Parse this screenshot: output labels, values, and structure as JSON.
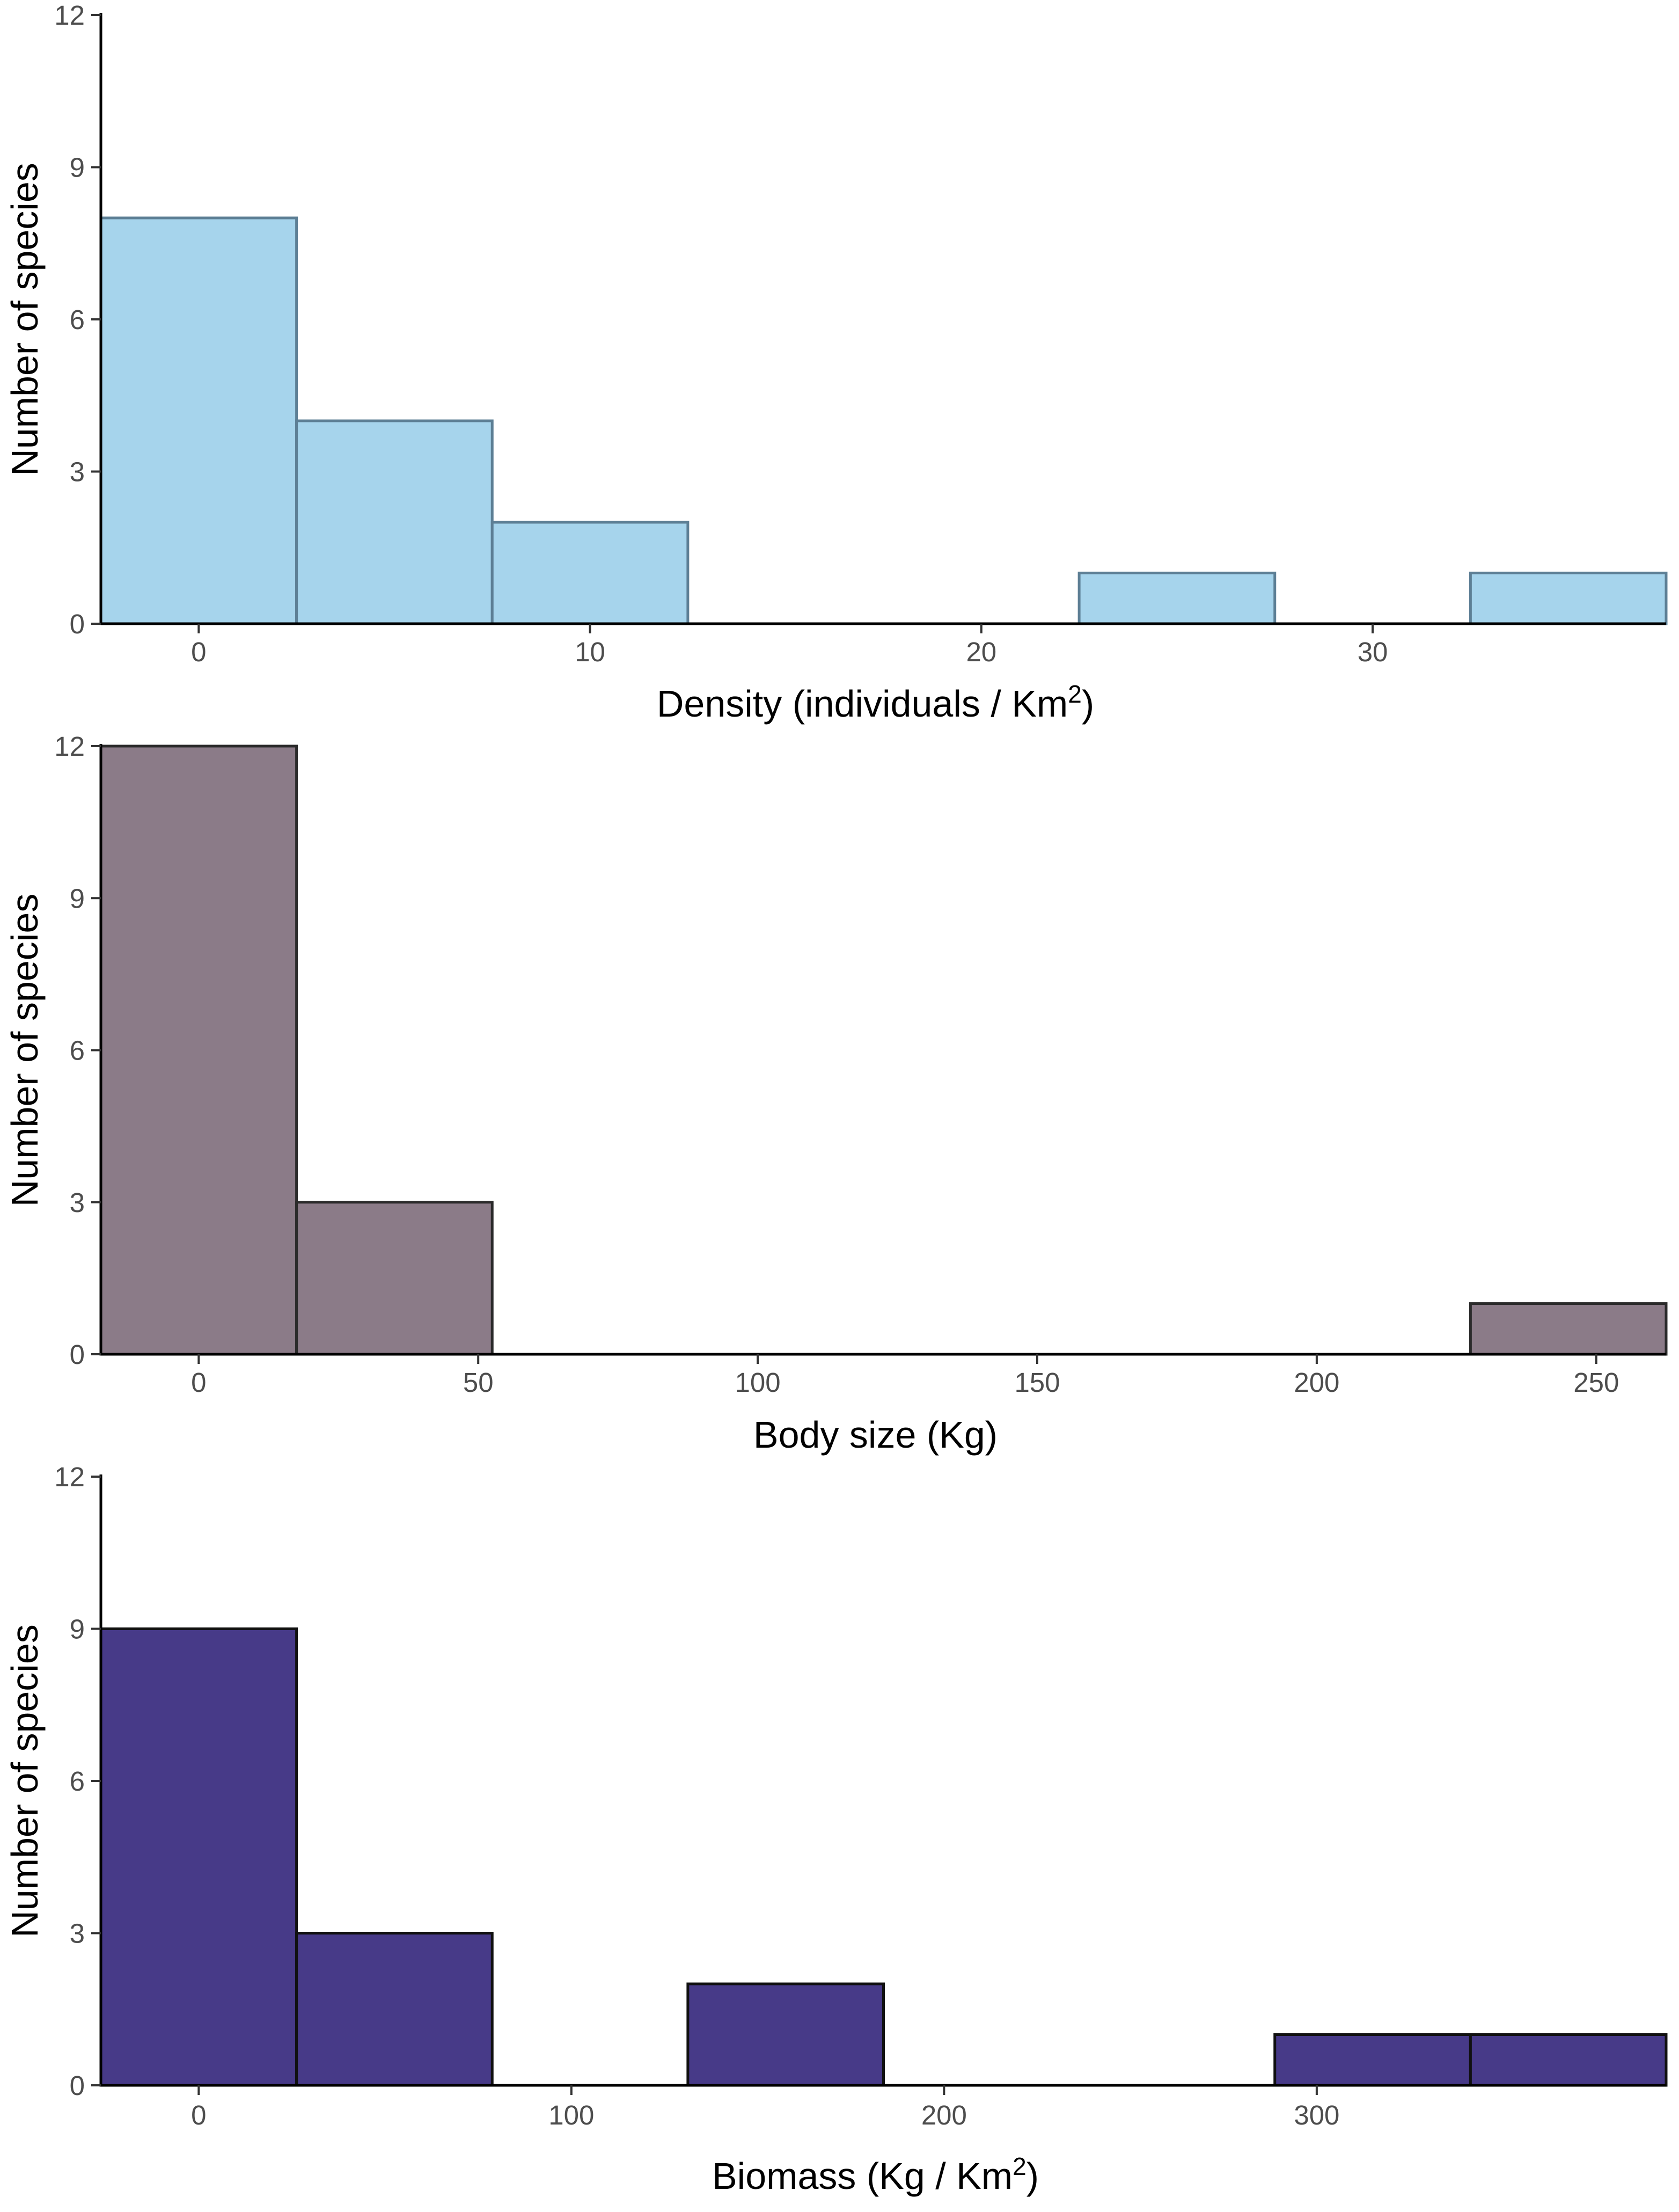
{
  "chart_data": [
    {
      "type": "histogram",
      "xlabel": {
        "main": "Density (individuals / Km",
        "sup": "2",
        "tail": ")"
      },
      "ylabel": "Number of species",
      "xlim": [
        -2.5,
        37.5
      ],
      "ylim": [
        0,
        12
      ],
      "xticks": [
        0,
        10,
        20,
        30
      ],
      "yticks": [
        0,
        3,
        6,
        9,
        12
      ],
      "fill": "#a6d4ec",
      "stroke": "#5d7f95",
      "bins": [
        {
          "x0": -2.5,
          "x1": 2.5,
          "count": 8
        },
        {
          "x0": 2.5,
          "x1": 7.5,
          "count": 4
        },
        {
          "x0": 7.5,
          "x1": 12.5,
          "count": 2
        },
        {
          "x0": 12.5,
          "x1": 17.5,
          "count": 0
        },
        {
          "x0": 17.5,
          "x1": 22.5,
          "count": 0
        },
        {
          "x0": 22.5,
          "x1": 27.5,
          "count": 1
        },
        {
          "x0": 27.5,
          "x1": 32.5,
          "count": 0
        },
        {
          "x0": 32.5,
          "x1": 37.5,
          "count": 1
        }
      ]
    },
    {
      "type": "histogram",
      "xlabel": {
        "main": "Body size (Kg)",
        "sup": "",
        "tail": ""
      },
      "ylabel": "Number of species",
      "xlim": [
        -17.5,
        262.5
      ],
      "ylim": [
        0,
        12
      ],
      "xticks": [
        0,
        50,
        100,
        150,
        200,
        250
      ],
      "yticks": [
        0,
        3,
        6,
        9,
        12
      ],
      "fill": "#8b7b88",
      "stroke": "#2b2b2b",
      "bins": [
        {
          "x0": -17.5,
          "x1": 17.5,
          "count": 12
        },
        {
          "x0": 17.5,
          "x1": 52.5,
          "count": 3
        },
        {
          "x0": 52.5,
          "x1": 87.5,
          "count": 0
        },
        {
          "x0": 87.5,
          "x1": 122.5,
          "count": 0
        },
        {
          "x0": 122.5,
          "x1": 157.5,
          "count": 0
        },
        {
          "x0": 157.5,
          "x1": 192.5,
          "count": 0
        },
        {
          "x0": 192.5,
          "x1": 227.5,
          "count": 0
        },
        {
          "x0": 227.5,
          "x1": 262.5,
          "count": 1
        }
      ]
    },
    {
      "type": "histogram",
      "xlabel": {
        "main": "Biomass (Kg / Km",
        "sup": "2",
        "tail": ")"
      },
      "ylabel": "Number of species",
      "xlim": [
        -26.25,
        393.75
      ],
      "ylim": [
        0,
        12
      ],
      "xticks": [
        0,
        100,
        200,
        300
      ],
      "yticks": [
        0,
        3,
        6,
        9,
        12
      ],
      "fill": "#473a88",
      "stroke": "#111111",
      "bins": [
        {
          "x0": -26.25,
          "x1": 26.25,
          "count": 9
        },
        {
          "x0": 26.25,
          "x1": 78.75,
          "count": 3
        },
        {
          "x0": 78.75,
          "x1": 131.25,
          "count": 0
        },
        {
          "x0": 131.25,
          "x1": 183.75,
          "count": 2
        },
        {
          "x0": 183.75,
          "x1": 236.25,
          "count": 0
        },
        {
          "x0": 236.25,
          "x1": 288.75,
          "count": 0
        },
        {
          "x0": 288.75,
          "x1": 341.25,
          "count": 1
        },
        {
          "x0": 341.25,
          "x1": 393.75,
          "count": 1
        }
      ]
    }
  ]
}
